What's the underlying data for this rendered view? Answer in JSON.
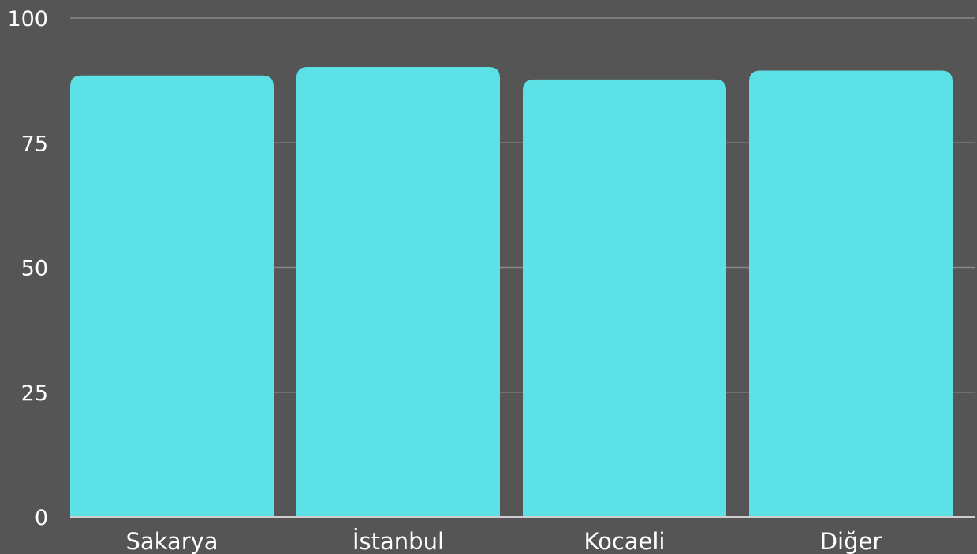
{
  "chart_data": {
    "type": "bar",
    "title": "",
    "xlabel": "",
    "ylabel": "",
    "categories": [
      "Sakarya",
      "İstanbul",
      "Kocaeli",
      "Diğer"
    ],
    "values": [
      88.5,
      90.2,
      87.7,
      89.5
    ],
    "ylim": [
      0,
      100
    ],
    "yticks": [
      "0",
      "25",
      "50",
      "75",
      "100"
    ],
    "grid": true,
    "legend": "none",
    "colors": {
      "background": "#555555",
      "bar": "#5ce1e6",
      "grid": "#8a8a8a",
      "text": "#ffffff"
    }
  }
}
